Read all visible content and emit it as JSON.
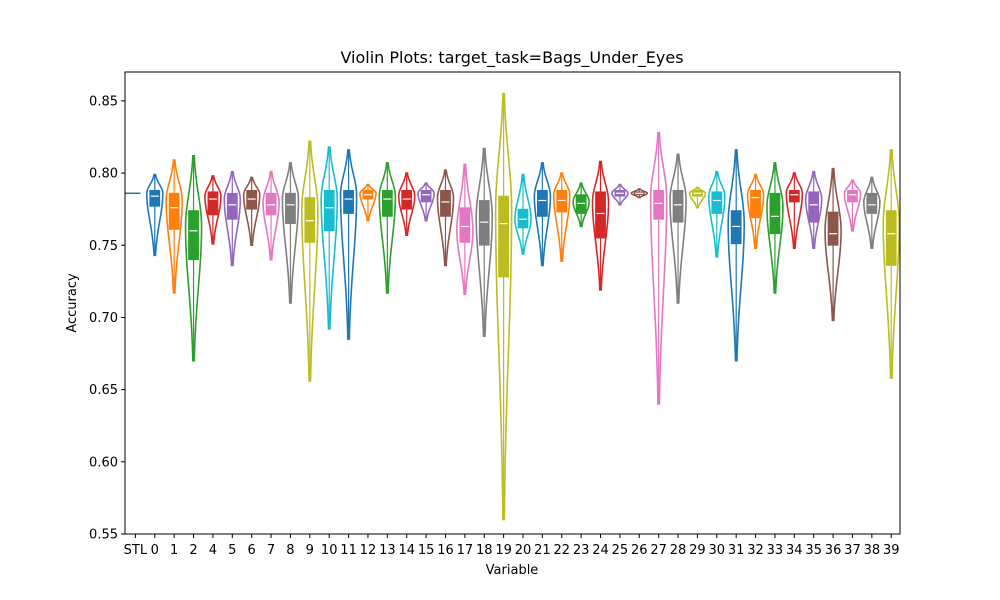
{
  "chart_data": {
    "type": "violin",
    "title": "Violin Plots: target_task=Bags_Under_Eyes",
    "xlabel": "Variable",
    "ylabel": "Accuracy",
    "ylim": [
      0.55,
      0.87
    ],
    "yticks": [
      0.55,
      0.6,
      0.65,
      0.7,
      0.75,
      0.8,
      0.85
    ],
    "stl_baseline": 0.786,
    "palette": [
      "#1f77b4",
      "#ff7f0e",
      "#2ca02c",
      "#d62728",
      "#9467bd",
      "#8c564b",
      "#e377c2",
      "#7f7f7f",
      "#bcbd22",
      "#17becf"
    ],
    "violins": [
      {
        "label": "0",
        "min": 0.743,
        "max": 0.799,
        "q1": 0.777,
        "median": 0.784,
        "q3": 0.788,
        "mode": 0.786
      },
      {
        "label": "1",
        "min": 0.717,
        "max": 0.809,
        "q1": 0.761,
        "median": 0.776,
        "q3": 0.786,
        "mode": 0.781
      },
      {
        "label": "2",
        "min": 0.67,
        "max": 0.812,
        "q1": 0.74,
        "median": 0.76,
        "q3": 0.774,
        "mode": 0.763
      },
      {
        "label": "4",
        "min": 0.751,
        "max": 0.798,
        "q1": 0.771,
        "median": 0.782,
        "q3": 0.787,
        "mode": 0.784
      },
      {
        "label": "5",
        "min": 0.736,
        "max": 0.801,
        "q1": 0.768,
        "median": 0.778,
        "q3": 0.786,
        "mode": 0.782
      },
      {
        "label": "6",
        "min": 0.75,
        "max": 0.797,
        "q1": 0.775,
        "median": 0.782,
        "q3": 0.788,
        "mode": 0.785
      },
      {
        "label": "7",
        "min": 0.74,
        "max": 0.801,
        "q1": 0.771,
        "median": 0.778,
        "q3": 0.786,
        "mode": 0.78
      },
      {
        "label": "8",
        "min": 0.71,
        "max": 0.807,
        "q1": 0.765,
        "median": 0.778,
        "q3": 0.786,
        "mode": 0.782
      },
      {
        "label": "9",
        "min": 0.656,
        "max": 0.822,
        "q1": 0.752,
        "median": 0.767,
        "q3": 0.783,
        "mode": 0.775
      },
      {
        "label": "10",
        "min": 0.692,
        "max": 0.818,
        "q1": 0.76,
        "median": 0.776,
        "q3": 0.788,
        "mode": 0.782
      },
      {
        "label": "11",
        "min": 0.685,
        "max": 0.816,
        "q1": 0.772,
        "median": 0.782,
        "q3": 0.788,
        "mode": 0.785
      },
      {
        "label": "12",
        "min": 0.767,
        "max": 0.792,
        "q1": 0.782,
        "median": 0.785,
        "q3": 0.788,
        "mode": 0.786
      },
      {
        "label": "13",
        "min": 0.717,
        "max": 0.807,
        "q1": 0.77,
        "median": 0.782,
        "q3": 0.788,
        "mode": 0.784
      },
      {
        "label": "14",
        "min": 0.757,
        "max": 0.8,
        "q1": 0.775,
        "median": 0.782,
        "q3": 0.788,
        "mode": 0.784
      },
      {
        "label": "15",
        "min": 0.767,
        "max": 0.793,
        "q1": 0.78,
        "median": 0.785,
        "q3": 0.788,
        "mode": 0.786
      },
      {
        "label": "16",
        "min": 0.736,
        "max": 0.802,
        "q1": 0.77,
        "median": 0.78,
        "q3": 0.788,
        "mode": 0.783
      },
      {
        "label": "17",
        "min": 0.716,
        "max": 0.806,
        "q1": 0.752,
        "median": 0.763,
        "q3": 0.776,
        "mode": 0.76
      },
      {
        "label": "18",
        "min": 0.687,
        "max": 0.817,
        "q1": 0.75,
        "median": 0.766,
        "q3": 0.781,
        "mode": 0.77
      },
      {
        "label": "19",
        "min": 0.56,
        "max": 0.855,
        "q1": 0.728,
        "median": 0.765,
        "q3": 0.784,
        "mode": 0.775
      },
      {
        "label": "20",
        "min": 0.744,
        "max": 0.799,
        "q1": 0.762,
        "median": 0.768,
        "q3": 0.775,
        "mode": 0.768
      },
      {
        "label": "21",
        "min": 0.736,
        "max": 0.807,
        "q1": 0.77,
        "median": 0.781,
        "q3": 0.788,
        "mode": 0.784
      },
      {
        "label": "22",
        "min": 0.739,
        "max": 0.8,
        "q1": 0.773,
        "median": 0.781,
        "q3": 0.788,
        "mode": 0.785
      },
      {
        "label": "23",
        "min": 0.763,
        "max": 0.793,
        "q1": 0.772,
        "median": 0.779,
        "q3": 0.785,
        "mode": 0.78
      },
      {
        "label": "24",
        "min": 0.719,
        "max": 0.808,
        "q1": 0.755,
        "median": 0.772,
        "q3": 0.787,
        "mode": 0.78
      },
      {
        "label": "25",
        "min": 0.778,
        "max": 0.792,
        "q1": 0.784,
        "median": 0.786,
        "q3": 0.788,
        "mode": 0.786
      },
      {
        "label": "26",
        "min": 0.783,
        "max": 0.789,
        "q1": 0.785,
        "median": 0.786,
        "q3": 0.787,
        "mode": 0.786
      },
      {
        "label": "27",
        "min": 0.64,
        "max": 0.828,
        "q1": 0.768,
        "median": 0.779,
        "q3": 0.788,
        "mode": 0.783
      },
      {
        "label": "28",
        "min": 0.71,
        "max": 0.813,
        "q1": 0.766,
        "median": 0.778,
        "q3": 0.788,
        "mode": 0.782
      },
      {
        "label": "29",
        "min": 0.776,
        "max": 0.79,
        "q1": 0.784,
        "median": 0.786,
        "q3": 0.788,
        "mode": 0.786
      },
      {
        "label": "30",
        "min": 0.742,
        "max": 0.801,
        "q1": 0.772,
        "median": 0.781,
        "q3": 0.787,
        "mode": 0.784
      },
      {
        "label": "31",
        "min": 0.67,
        "max": 0.816,
        "q1": 0.751,
        "median": 0.763,
        "q3": 0.774,
        "mode": 0.765
      },
      {
        "label": "32",
        "min": 0.748,
        "max": 0.799,
        "q1": 0.769,
        "median": 0.783,
        "q3": 0.788,
        "mode": 0.785
      },
      {
        "label": "33",
        "min": 0.717,
        "max": 0.807,
        "q1": 0.758,
        "median": 0.77,
        "q3": 0.786,
        "mode": 0.777
      },
      {
        "label": "34",
        "min": 0.748,
        "max": 0.8,
        "q1": 0.78,
        "median": 0.785,
        "q3": 0.788,
        "mode": 0.786
      },
      {
        "label": "35",
        "min": 0.748,
        "max": 0.801,
        "q1": 0.766,
        "median": 0.778,
        "q3": 0.787,
        "mode": 0.782
      },
      {
        "label": "36",
        "min": 0.698,
        "max": 0.803,
        "q1": 0.75,
        "median": 0.758,
        "q3": 0.773,
        "mode": 0.76
      },
      {
        "label": "37",
        "min": 0.76,
        "max": 0.795,
        "q1": 0.78,
        "median": 0.785,
        "q3": 0.788,
        "mode": 0.786
      },
      {
        "label": "38",
        "min": 0.748,
        "max": 0.797,
        "q1": 0.772,
        "median": 0.778,
        "q3": 0.786,
        "mode": 0.78
      },
      {
        "label": "39",
        "min": 0.658,
        "max": 0.816,
        "q1": 0.736,
        "median": 0.758,
        "q3": 0.774,
        "mode": 0.765
      }
    ],
    "xtick_labels": [
      "STL",
      "0",
      "1",
      "2",
      "4",
      "5",
      "6",
      "7",
      "8",
      "9",
      "10",
      "11",
      "12",
      "13",
      "14",
      "15",
      "16",
      "17",
      "18",
      "19",
      "20",
      "21",
      "22",
      "23",
      "24",
      "25",
      "26",
      "27",
      "28",
      "29",
      "30",
      "31",
      "32",
      "33",
      "34",
      "35",
      "36",
      "37",
      "38",
      "39"
    ]
  }
}
